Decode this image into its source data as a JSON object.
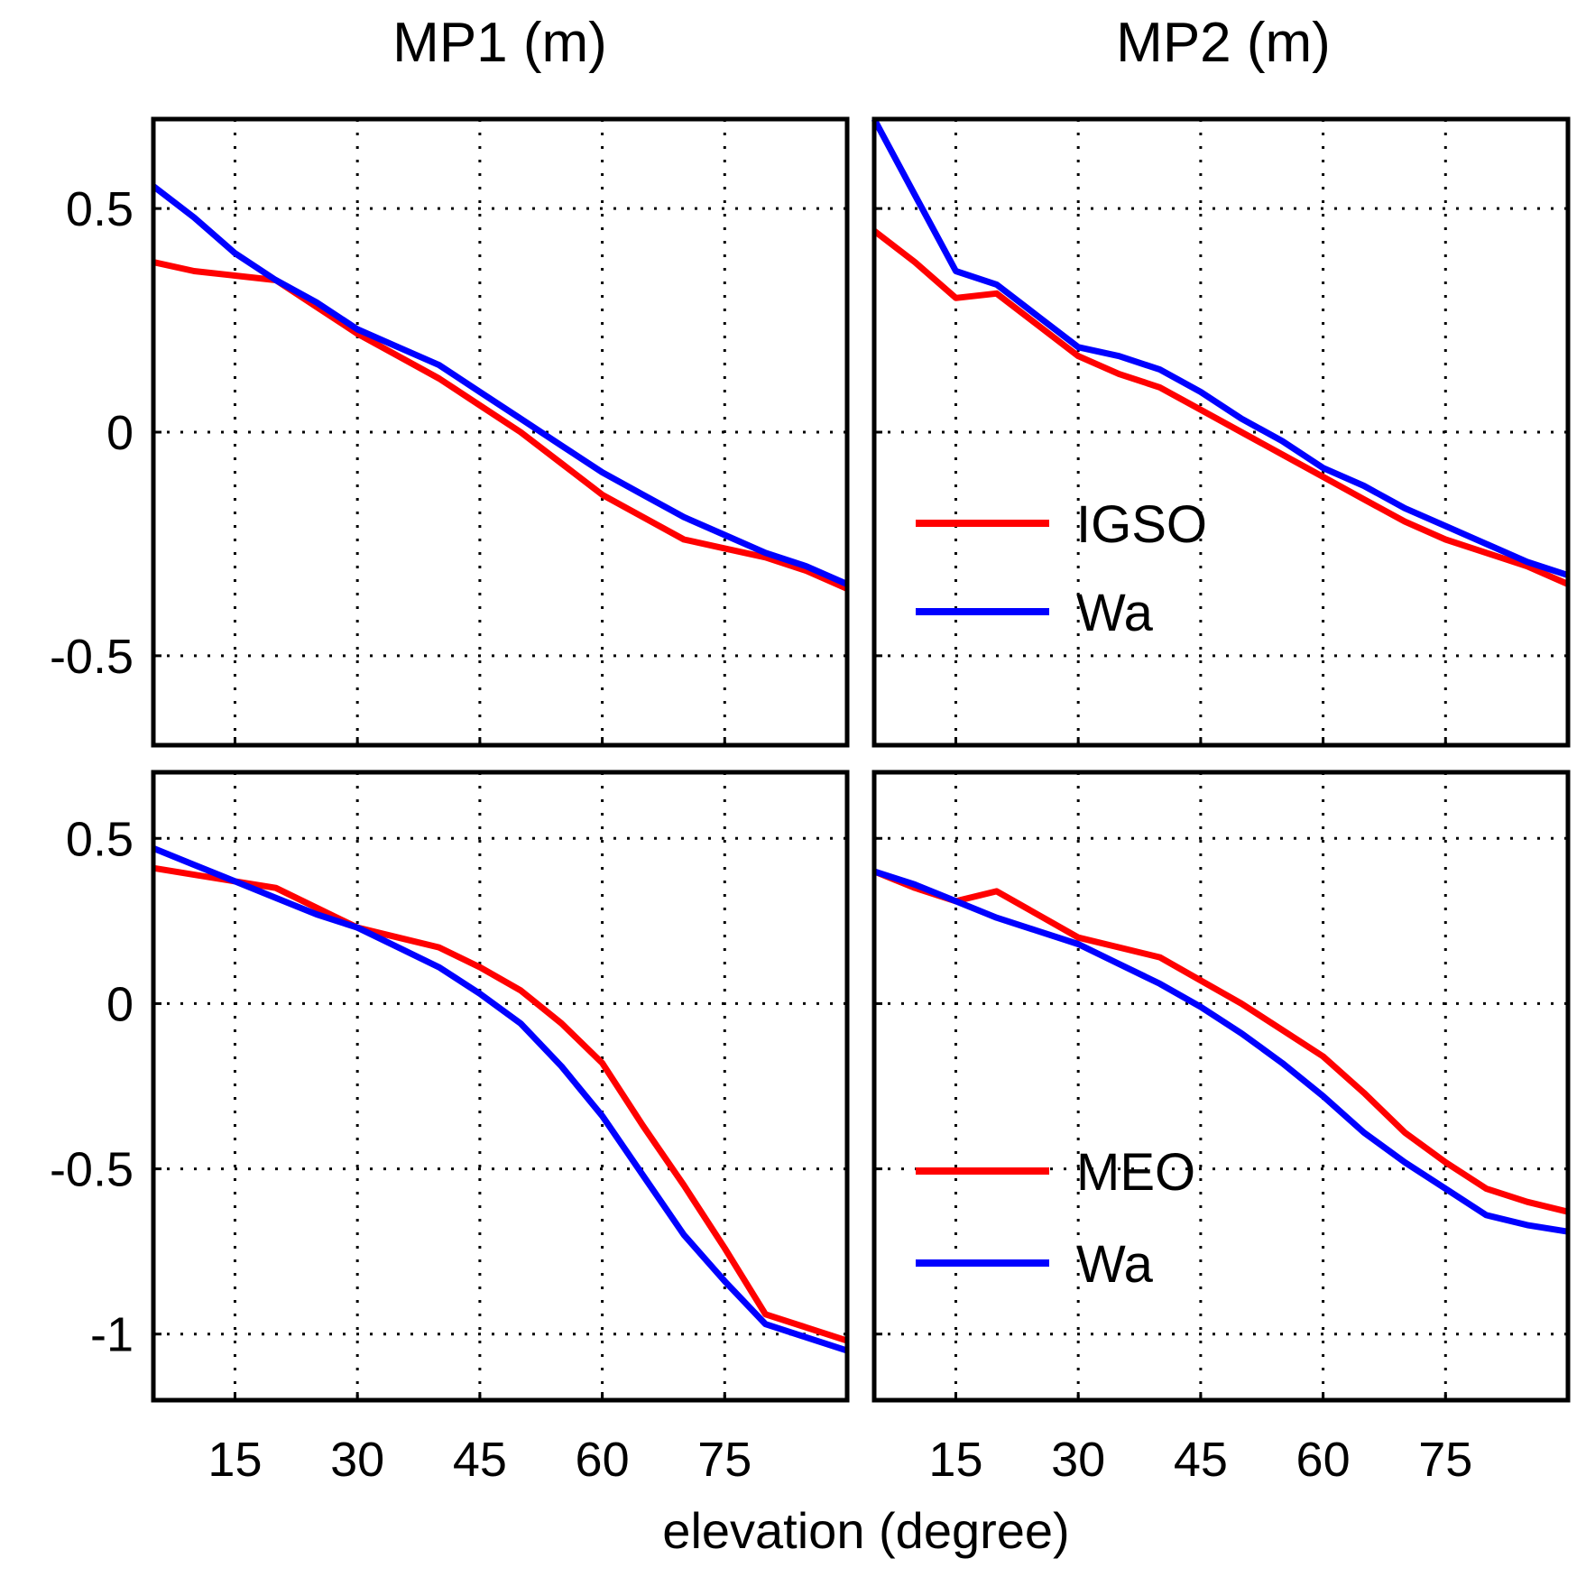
{
  "figure": {
    "column_titles": [
      "MP1 (m)",
      "MP2 (m)"
    ],
    "xlabel": "elevation (degree)"
  },
  "chart_data": [
    {
      "type": "line",
      "title": "MP1 (m)",
      "xlim": [
        5,
        90
      ],
      "ylim": [
        -0.7,
        0.7
      ],
      "xticks": [
        15,
        30,
        45,
        60,
        75
      ],
      "yticks": [
        -0.5,
        0,
        0.5
      ],
      "ytick_labels": [
        "-0.5",
        "0",
        "0.5"
      ],
      "grid": true,
      "series": [
        {
          "name": "IGSO",
          "color": "#ff0000",
          "x": [
            5,
            10,
            15,
            20,
            25,
            30,
            35,
            40,
            45,
            50,
            55,
            60,
            65,
            70,
            75,
            80,
            85,
            90
          ],
          "y": [
            0.38,
            0.36,
            0.35,
            0.34,
            0.28,
            0.22,
            0.17,
            0.12,
            0.06,
            0.0,
            -0.07,
            -0.14,
            -0.19,
            -0.24,
            -0.26,
            -0.28,
            -0.31,
            -0.35
          ]
        },
        {
          "name": "Wa",
          "color": "#0000ff",
          "x": [
            5,
            10,
            15,
            20,
            25,
            30,
            35,
            40,
            45,
            50,
            55,
            60,
            65,
            70,
            75,
            80,
            85,
            90
          ],
          "y": [
            0.55,
            0.48,
            0.4,
            0.34,
            0.29,
            0.23,
            0.19,
            0.15,
            0.09,
            0.03,
            -0.03,
            -0.09,
            -0.14,
            -0.19,
            -0.23,
            -0.27,
            -0.3,
            -0.34
          ]
        }
      ]
    },
    {
      "type": "line",
      "title": "MP2 (m)",
      "xlim": [
        5,
        90
      ],
      "ylim": [
        -0.7,
        0.7
      ],
      "xticks": [
        15,
        30,
        45,
        60,
        75
      ],
      "yticks": [
        -0.5,
        0,
        0.5
      ],
      "grid": true,
      "legend": {
        "position": "center-left",
        "entries": [
          "IGSO",
          "Wa"
        ]
      },
      "series": [
        {
          "name": "IGSO",
          "color": "#ff0000",
          "x": [
            5,
            10,
            15,
            20,
            25,
            30,
            35,
            40,
            45,
            50,
            55,
            60,
            65,
            70,
            75,
            80,
            85,
            90
          ],
          "y": [
            0.45,
            0.38,
            0.3,
            0.31,
            0.24,
            0.17,
            0.13,
            0.1,
            0.05,
            0.0,
            -0.05,
            -0.1,
            -0.15,
            -0.2,
            -0.24,
            -0.27,
            -0.3,
            -0.34
          ]
        },
        {
          "name": "Wa",
          "color": "#0000ff",
          "x": [
            5,
            10,
            15,
            20,
            25,
            30,
            35,
            40,
            45,
            50,
            55,
            60,
            65,
            70,
            75,
            80,
            85,
            90
          ],
          "y": [
            0.7,
            0.53,
            0.36,
            0.33,
            0.26,
            0.19,
            0.17,
            0.14,
            0.09,
            0.03,
            -0.02,
            -0.08,
            -0.12,
            -0.17,
            -0.21,
            -0.25,
            -0.29,
            -0.32
          ]
        }
      ]
    },
    {
      "type": "line",
      "title": "",
      "xlim": [
        5,
        90
      ],
      "ylim": [
        -1.2,
        0.7
      ],
      "xticks": [
        15,
        30,
        45,
        60,
        75
      ],
      "xtick_labels": [
        "15",
        "30",
        "45",
        "60",
        "75"
      ],
      "yticks": [
        -1,
        -0.5,
        0,
        0.5
      ],
      "ytick_labels": [
        "-1",
        "-0.5",
        "0",
        "0.5"
      ],
      "grid": true,
      "series": [
        {
          "name": "MEO",
          "color": "#ff0000",
          "x": [
            5,
            10,
            15,
            20,
            25,
            30,
            35,
            40,
            45,
            50,
            55,
            60,
            65,
            70,
            75,
            80,
            85,
            90
          ],
          "y": [
            0.41,
            0.39,
            0.37,
            0.35,
            0.29,
            0.23,
            0.2,
            0.17,
            0.11,
            0.04,
            -0.06,
            -0.18,
            -0.37,
            -0.55,
            -0.74,
            -0.94,
            -0.98,
            -1.02
          ]
        },
        {
          "name": "Wa",
          "color": "#0000ff",
          "x": [
            5,
            10,
            15,
            20,
            25,
            30,
            35,
            40,
            45,
            50,
            55,
            60,
            65,
            70,
            75,
            80,
            85,
            90
          ],
          "y": [
            0.47,
            0.42,
            0.37,
            0.32,
            0.27,
            0.23,
            0.17,
            0.11,
            0.03,
            -0.06,
            -0.19,
            -0.34,
            -0.52,
            -0.7,
            -0.84,
            -0.97,
            -1.01,
            -1.05
          ]
        }
      ]
    },
    {
      "type": "line",
      "title": "",
      "xlim": [
        5,
        90
      ],
      "ylim": [
        -1.2,
        0.7
      ],
      "xticks": [
        15,
        30,
        45,
        60,
        75
      ],
      "xtick_labels": [
        "15",
        "30",
        "45",
        "60",
        "75"
      ],
      "yticks": [
        -1,
        -0.5,
        0,
        0.5
      ],
      "grid": true,
      "legend": {
        "position": "bottom-left",
        "entries": [
          "MEO",
          "Wa"
        ]
      },
      "series": [
        {
          "name": "MEO",
          "color": "#ff0000",
          "x": [
            5,
            10,
            15,
            20,
            25,
            30,
            35,
            40,
            45,
            50,
            55,
            60,
            65,
            70,
            75,
            80,
            85,
            90
          ],
          "y": [
            0.4,
            0.35,
            0.31,
            0.34,
            0.27,
            0.2,
            0.17,
            0.14,
            0.07,
            0.0,
            -0.08,
            -0.16,
            -0.27,
            -0.39,
            -0.48,
            -0.56,
            -0.6,
            -0.63
          ]
        },
        {
          "name": "Wa",
          "color": "#0000ff",
          "x": [
            5,
            10,
            15,
            20,
            25,
            30,
            35,
            40,
            45,
            50,
            55,
            60,
            65,
            70,
            75,
            80,
            85,
            90
          ],
          "y": [
            0.4,
            0.36,
            0.31,
            0.26,
            0.22,
            0.18,
            0.12,
            0.06,
            -0.01,
            -0.09,
            -0.18,
            -0.28,
            -0.39,
            -0.48,
            -0.56,
            -0.64,
            -0.67,
            -0.69
          ]
        }
      ]
    }
  ]
}
